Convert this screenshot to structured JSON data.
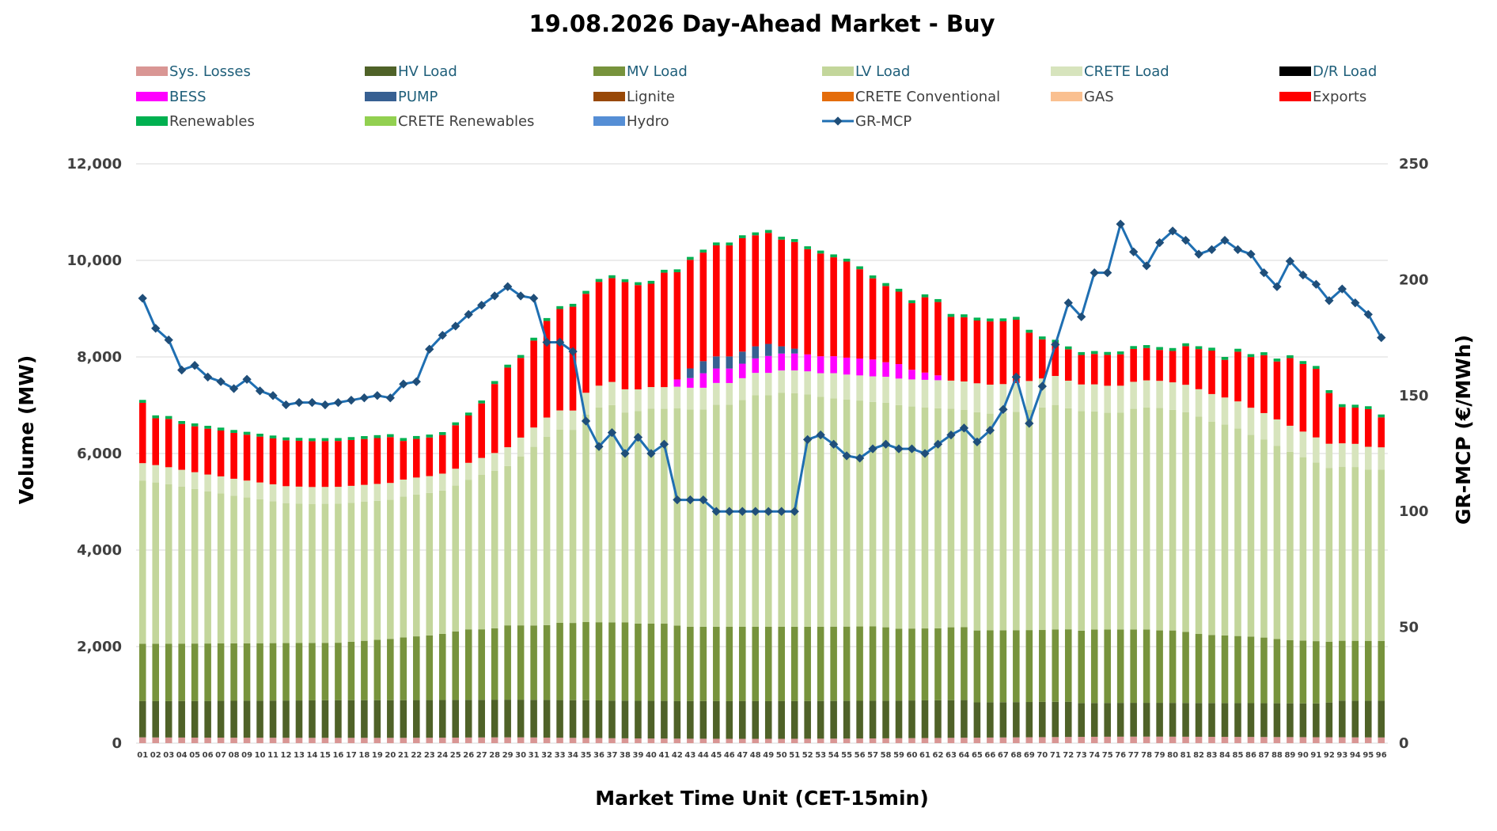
{
  "chart_data": {
    "type": "bar",
    "title": "19.08.2026  Day-Ahead Market - Buy",
    "xlabel": "Market Time Unit (CET-15min)",
    "ylabel": "Volume (MW)",
    "y2label": "GR-MCP (€/MWh)",
    "ylim": [
      0,
      12000
    ],
    "y2lim": [
      0,
      250
    ],
    "yticks": [
      "0",
      "2,000",
      "4,000",
      "6,000",
      "8,000",
      "10,000",
      "12,000"
    ],
    "y2ticks": [
      "0",
      "50",
      "100",
      "150",
      "200",
      "250"
    ],
    "categories": [
      "01",
      "02",
      "03",
      "04",
      "05",
      "06",
      "07",
      "08",
      "09",
      "10",
      "11",
      "12",
      "13",
      "14",
      "15",
      "16",
      "17",
      "18",
      "19",
      "20",
      "21",
      "22",
      "23",
      "24",
      "25",
      "26",
      "27",
      "28",
      "29",
      "30",
      "31",
      "32",
      "33",
      "34",
      "35",
      "36",
      "37",
      "38",
      "39",
      "40",
      "41",
      "42",
      "43",
      "44",
      "45",
      "46",
      "47",
      "48",
      "49",
      "50",
      "51",
      "52",
      "53",
      "54",
      "55",
      "56",
      "57",
      "58",
      "59",
      "60",
      "61",
      "62",
      "63",
      "64",
      "65",
      "66",
      "67",
      "68",
      "69",
      "70",
      "71",
      "72",
      "73",
      "74",
      "75",
      "76",
      "77",
      "78",
      "79",
      "80",
      "81",
      "82",
      "83",
      "84",
      "85",
      "86",
      "87",
      "88",
      "89",
      "90",
      "91",
      "92",
      "93",
      "94",
      "95",
      "96"
    ],
    "legend": [
      {
        "name": "Sys. Losses",
        "color": "#d99694",
        "kind": "box"
      },
      {
        "name": "HV Load",
        "color": "#4f6228",
        "kind": "box"
      },
      {
        "name": "MV Load",
        "color": "#77933c",
        "kind": "box"
      },
      {
        "name": "LV Load",
        "color": "#c3d69b",
        "kind": "box"
      },
      {
        "name": "CRETE Load",
        "color": "#d7e4bd",
        "kind": "box"
      },
      {
        "name": "D/R Load",
        "color": "#000000",
        "kind": "box"
      },
      {
        "name": "BESS",
        "color": "#ff00ff",
        "kind": "box"
      },
      {
        "name": "PUMP",
        "color": "#376092",
        "kind": "box"
      },
      {
        "name": "Lignite",
        "color": "#984807",
        "kind": "box"
      },
      {
        "name": "CRETE Conventional",
        "color": "#e46c0a",
        "kind": "box"
      },
      {
        "name": "GAS",
        "color": "#fac090",
        "kind": "box"
      },
      {
        "name": "Exports",
        "color": "#ff0000",
        "kind": "box"
      },
      {
        "name": "Renewables",
        "color": "#00b050",
        "kind": "box"
      },
      {
        "name": "CRETE Renewables",
        "color": "#92d050",
        "kind": "box"
      },
      {
        "name": "Hydro",
        "color": "#558ed5",
        "kind": "box"
      },
      {
        "name": "GR-MCP",
        "color": "#1f6fb2",
        "kind": "line"
      }
    ],
    "series": [
      {
        "name": "Sys. Losses",
        "axis": "left",
        "color": "#d99694",
        "values": [
          120,
          118,
          117,
          116,
          115,
          114,
          114,
          113,
          113,
          112,
          112,
          111,
          110,
          110,
          110,
          110,
          110,
          110,
          110,
          110,
          110,
          112,
          112,
          113,
          115,
          117,
          118,
          120,
          120,
          120,
          118,
          115,
          112,
          110,
          108,
          105,
          102,
          100,
          98,
          96,
          95,
          94,
          92,
          92,
          91,
          90,
          90,
          90,
          90,
          90,
          91,
          92,
          93,
          94,
          95,
          97,
          98,
          100,
          102,
          104,
          106,
          108,
          110,
          112,
          114,
          116,
          118,
          120,
          122,
          124,
          126,
          128,
          130,
          132,
          133,
          134,
          135,
          135,
          135,
          134,
          133,
          132,
          131,
          130,
          129,
          128,
          127,
          126,
          125,
          124,
          123,
          122,
          121,
          120,
          119,
          118
        ]
      },
      {
        "name": "HV Load",
        "axis": "left",
        "color": "#4f6228",
        "values": [
          750,
          752,
          754,
          756,
          758,
          760,
          762,
          764,
          766,
          768,
          770,
          772,
          774,
          776,
          778,
          780,
          780,
          780,
          780,
          780,
          780,
          780,
          780,
          780,
          780,
          780,
          780,
          780,
          780,
          780,
          780,
          780,
          780,
          780,
          780,
          780,
          780,
          780,
          780,
          780,
          780,
          780,
          780,
          780,
          780,
          780,
          780,
          780,
          780,
          780,
          780,
          780,
          780,
          780,
          780,
          780,
          780,
          780,
          780,
          780,
          780,
          780,
          780,
          780,
          730,
          730,
          730,
          730,
          730,
          730,
          730,
          730,
          700,
          700,
          700,
          700,
          700,
          700,
          700,
          700,
          700,
          700,
          700,
          700,
          700,
          700,
          700,
          700,
          700,
          700,
          700,
          720,
          760,
          760,
          760,
          760
        ]
      },
      {
        "name": "MV Load",
        "axis": "left",
        "color": "#77933c",
        "values": [
          1190,
          1190,
          1190,
          1190,
          1190,
          1190,
          1190,
          1190,
          1190,
          1190,
          1190,
          1190,
          1190,
          1190,
          1190,
          1190,
          1210,
          1230,
          1250,
          1270,
          1300,
          1320,
          1340,
          1370,
          1420,
          1460,
          1460,
          1480,
          1540,
          1540,
          1540,
          1550,
          1600,
          1600,
          1620,
          1620,
          1620,
          1620,
          1600,
          1600,
          1600,
          1560,
          1540,
          1540,
          1540,
          1540,
          1540,
          1540,
          1540,
          1540,
          1540,
          1540,
          1540,
          1540,
          1540,
          1540,
          1540,
          1520,
          1490,
          1490,
          1490,
          1490,
          1510,
          1510,
          1490,
          1490,
          1490,
          1490,
          1490,
          1490,
          1500,
          1500,
          1500,
          1520,
          1520,
          1520,
          1520,
          1520,
          1500,
          1500,
          1470,
          1430,
          1410,
          1400,
          1390,
          1380,
          1360,
          1330,
          1310,
          1300,
          1290,
          1260,
          1240,
          1240,
          1240,
          1240
        ]
      },
      {
        "name": "LV Load",
        "axis": "left",
        "color": "#c3d69b",
        "values": [
          3380,
          3340,
          3300,
          3250,
          3200,
          3150,
          3110,
          3060,
          3020,
          2980,
          2940,
          2900,
          2890,
          2880,
          2880,
          2880,
          2880,
          2880,
          2880,
          2880,
          2920,
          2940,
          2950,
          2970,
          3020,
          3100,
          3200,
          3260,
          3300,
          3500,
          3700,
          3900,
          4000,
          4000,
          4300,
          4450,
          4500,
          4350,
          4400,
          4450,
          4450,
          4500,
          4500,
          4500,
          4600,
          4600,
          4700,
          4800,
          4800,
          4850,
          4840,
          4810,
          4760,
          4730,
          4700,
          4680,
          4650,
          4650,
          4630,
          4600,
          4580,
          4560,
          4530,
          4500,
          4520,
          4490,
          4500,
          4520,
          4560,
          4610,
          4650,
          4580,
          4550,
          4520,
          4490,
          4490,
          4570,
          4600,
          4610,
          4570,
          4550,
          4500,
          4420,
          4370,
          4300,
          4180,
          4100,
          4000,
          3900,
          3800,
          3700,
          3600,
          3600,
          3600,
          3550,
          3550
        ]
      },
      {
        "name": "CRETE Load",
        "axis": "left",
        "color": "#d7e4bd",
        "values": [
          360,
          360,
          355,
          350,
          350,
          350,
          350,
          350,
          350,
          350,
          350,
          350,
          350,
          350,
          350,
          350,
          350,
          350,
          350,
          350,
          350,
          350,
          350,
          350,
          350,
          350,
          350,
          370,
          390,
          390,
          400,
          400,
          400,
          400,
          450,
          450,
          480,
          480,
          450,
          450,
          450,
          450,
          450,
          450,
          450,
          450,
          450,
          460,
          460,
          460,
          470,
          480,
          490,
          520,
          520,
          520,
          530,
          540,
          550,
          560,
          570,
          580,
          580,
          590,
          600,
          600,
          600,
          600,
          600,
          600,
          600,
          570,
          550,
          560,
          560,
          560,
          560,
          560,
          560,
          570,
          570,
          570,
          570,
          560,
          560,
          560,
          550,
          550,
          540,
          530,
          520,
          500,
          490,
          480,
          470,
          460
        ]
      },
      {
        "name": "BESS",
        "axis": "left",
        "color": "#ff00ff",
        "values": [
          0,
          0,
          0,
          0,
          0,
          0,
          0,
          0,
          0,
          0,
          0,
          0,
          0,
          0,
          0,
          0,
          0,
          0,
          0,
          0,
          0,
          0,
          0,
          0,
          0,
          0,
          0,
          0,
          0,
          0,
          0,
          0,
          0,
          0,
          0,
          0,
          0,
          0,
          0,
          0,
          0,
          150,
          200,
          300,
          300,
          300,
          300,
          300,
          350,
          350,
          350,
          350,
          350,
          350,
          350,
          350,
          350,
          300,
          300,
          200,
          150,
          100,
          0,
          0,
          0,
          0,
          0,
          0,
          0,
          0,
          0,
          0,
          0,
          0,
          0,
          0,
          0,
          0,
          0,
          0,
          0,
          0,
          0,
          0,
          0,
          0,
          0,
          0,
          0,
          0,
          0,
          0,
          0,
          0,
          0,
          0
        ]
      },
      {
        "name": "PUMP",
        "axis": "left",
        "color": "#376092",
        "values": [
          0,
          0,
          0,
          0,
          0,
          0,
          0,
          0,
          0,
          0,
          0,
          0,
          0,
          0,
          0,
          0,
          0,
          0,
          0,
          0,
          0,
          0,
          0,
          0,
          0,
          0,
          0,
          0,
          0,
          0,
          0,
          0,
          0,
          0,
          0,
          0,
          0,
          0,
          0,
          0,
          0,
          0,
          200,
          250,
          250,
          250,
          250,
          250,
          250,
          150,
          100,
          0,
          0,
          0,
          0,
          0,
          0,
          0,
          0,
          0,
          0,
          0,
          0,
          0,
          0,
          0,
          0,
          0,
          0,
          0,
          0,
          0,
          0,
          0,
          0,
          0,
          0,
          0,
          0,
          0,
          0,
          0,
          0,
          0,
          0,
          0,
          0,
          0,
          0,
          0,
          0,
          0,
          0,
          0,
          0,
          0
        ]
      },
      {
        "name": "Exports",
        "axis": "left",
        "color": "#ff0000",
        "values": [
          1250,
          970,
          1000,
          950,
          950,
          950,
          950,
          950,
          950,
          950,
          950,
          950,
          950,
          950,
          950,
          950,
          950,
          950,
          950,
          950,
          800,
          800,
          800,
          800,
          900,
          980,
          1130,
          1430,
          1650,
          1650,
          1800,
          2000,
          2100,
          2150,
          2050,
          2150,
          2150,
          2220,
          2160,
          2140,
          2370,
          2220,
          2250,
          2250,
          2300,
          2300,
          2350,
          2300,
          2300,
          2210,
          2210,
          2180,
          2130,
          2050,
          1990,
          1850,
          1680,
          1580,
          1500,
          1380,
          1560,
          1520,
          1320,
          1330,
          1300,
          1310,
          1300,
          1310,
          1000,
          810,
          690,
          650,
          610,
          630,
          640,
          650,
          680,
          670,
          640,
          650,
          800,
          830,
          900,
          780,
          1030,
          1050,
          1200,
          1200,
          1400,
          1400,
          1420,
          1050,
          750,
          750,
          780,
          620
        ]
      },
      {
        "name": "Renewables",
        "axis": "left",
        "color": "#00b050",
        "values": [
          60,
          60,
          60,
          60,
          60,
          60,
          60,
          60,
          60,
          60,
          60,
          60,
          60,
          60,
          60,
          60,
          60,
          60,
          60,
          60,
          60,
          60,
          60,
          60,
          60,
          60,
          60,
          60,
          60,
          60,
          60,
          60,
          60,
          60,
          60,
          60,
          60,
          60,
          60,
          60,
          60,
          60,
          60,
          60,
          60,
          60,
          60,
          60,
          60,
          60,
          60,
          60,
          60,
          60,
          60,
          60,
          60,
          60,
          60,
          60,
          60,
          60,
          60,
          60,
          60,
          60,
          60,
          60,
          60,
          60,
          60,
          60,
          60,
          60,
          60,
          60,
          60,
          60,
          60,
          60,
          60,
          60,
          60,
          60,
          60,
          60,
          60,
          60,
          60,
          60,
          60,
          60,
          60,
          60,
          60,
          60
        ]
      },
      {
        "name": "GR-MCP",
        "axis": "right",
        "color": "#1f6fb2",
        "values": [
          192,
          179,
          174,
          161,
          163,
          158,
          156,
          153,
          157,
          152,
          150,
          146,
          147,
          147,
          146,
          147,
          148,
          149,
          150,
          149,
          155,
          156,
          170,
          176,
          180,
          185,
          189,
          193,
          197,
          193,
          192,
          173,
          173,
          169,
          139,
          128,
          134,
          125,
          132,
          125,
          129,
          105,
          105,
          105,
          100,
          100,
          100,
          100,
          100,
          100,
          100,
          131,
          133,
          129,
          124,
          123,
          127,
          129,
          127,
          127,
          125,
          129,
          133,
          136,
          130,
          135,
          144,
          158,
          138,
          154,
          172,
          190,
          184,
          203,
          203,
          224,
          212,
          206,
          216,
          221,
          217,
          211,
          213,
          217,
          213,
          211,
          203,
          197,
          208,
          202,
          198,
          191,
          196,
          190,
          185,
          175
        ]
      }
    ]
  }
}
